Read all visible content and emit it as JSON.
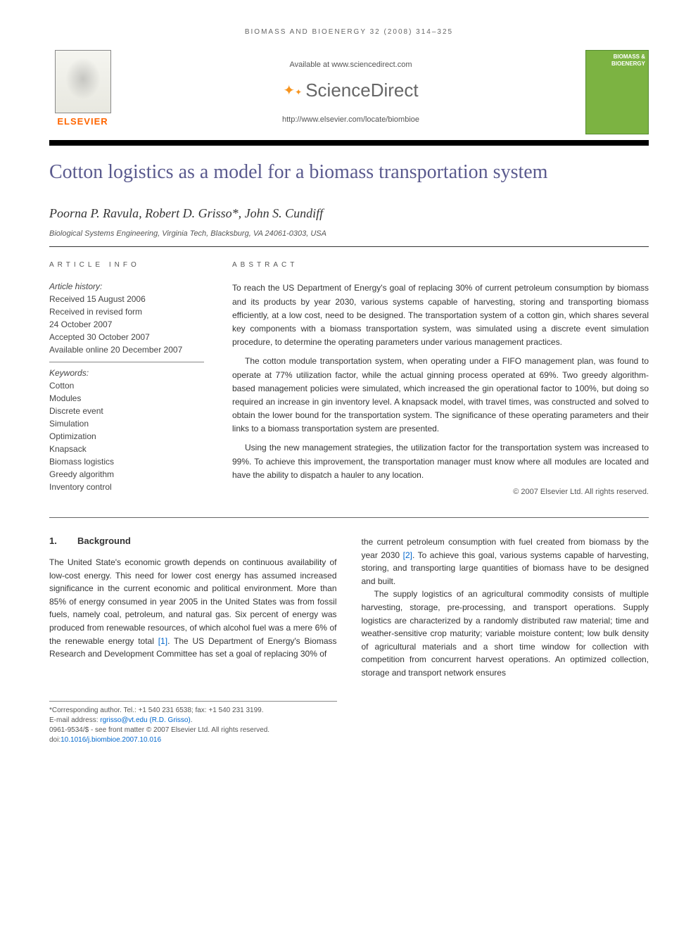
{
  "journal_header": "BIOMASS AND BIOENERGY 32 (2008) 314–325",
  "available_at": "Available at www.sciencedirect.com",
  "sciencedirect": "ScienceDirect",
  "journal_url": "http://www.elsevier.com/locate/biombioe",
  "elsevier_label": "ELSEVIER",
  "thumb_line1": "BIOMASS &",
  "thumb_line2": "BIOENERGY",
  "title": "Cotton logistics as a model for a biomass transportation system",
  "authors": "Poorna P. Ravula, Robert D. Grisso*, John S. Cundiff",
  "affiliation": "Biological Systems Engineering, Virginia Tech, Blacksburg, VA 24061-0303, USA",
  "article_info_label": "ARTICLE INFO",
  "abstract_label": "ABSTRACT",
  "history_label": "Article history:",
  "history": [
    "Received 15 August 2006",
    "Received in revised form",
    "24 October 2007",
    "Accepted 30 October 2007",
    "Available online 20 December 2007"
  ],
  "keywords_label": "Keywords:",
  "keywords": [
    "Cotton",
    "Modules",
    "Discrete event",
    "Simulation",
    "Optimization",
    "Knapsack",
    "Biomass logistics",
    "Greedy algorithm",
    "Inventory control"
  ],
  "abstract": {
    "p1": "To reach the US Department of Energy's goal of replacing 30% of current petroleum consumption by biomass and its products by year 2030, various systems capable of harvesting, storing and transporting biomass efficiently, at a low cost, need to be designed. The transportation system of a cotton gin, which shares several key components with a biomass transportation system, was simulated using a discrete event simulation procedure, to determine the operating parameters under various management practices.",
    "p2": "The cotton module transportation system, when operating under a FIFO management plan, was found to operate at 77% utilization factor, while the actual ginning process operated at 69%. Two greedy algorithm-based management policies were simulated, which increased the gin operational factor to 100%, but doing so required an increase in gin inventory level. A knapsack model, with travel times, was constructed and solved to obtain the lower bound for the transportation system. The significance of these operating parameters and their links to a biomass transportation system are presented.",
    "p3": "Using the new management strategies, the utilization factor for the transportation system was increased to 99%. To achieve this improvement, the transportation manager must know where all modules are located and have the ability to dispatch a hauler to any location."
  },
  "copyright": "© 2007 Elsevier Ltd. All rights reserved.",
  "section1": {
    "num": "1.",
    "title": "Background"
  },
  "body": {
    "col1_p1a": "The United State's economic growth depends on continuous availability of low-cost energy. This need for lower cost energy has assumed increased significance in the current economic and political environment. More than 85% of energy consumed in year 2005 in the United States was from fossil fuels, namely coal, petroleum, and natural gas. Six percent of energy was produced from renewable resources, of which alcohol fuel was a mere 6% of the renewable energy total ",
    "ref1": "[1]",
    "col1_p1b": ". The US Department of Energy's Biomass Research and Development Committee has set a goal of replacing 30% of",
    "col2_p1a": "the current petroleum consumption with fuel created from biomass by the year 2030 ",
    "ref2": "[2]",
    "col2_p1b": ". To achieve this goal, various systems capable of harvesting, storing, and transporting large quantities of biomass have to be designed and built.",
    "col2_p2": "The supply logistics of an agricultural commodity consists of multiple harvesting, storage, pre-processing, and transport operations. Supply logistics are characterized by a randomly distributed raw material; time and weather-sensitive crop maturity; variable moisture content; low bulk density of agricultural materials and a short time window for collection with competition from concurrent harvest operations. An optimized collection, storage and transport network ensures"
  },
  "footnotes": {
    "corr": "*Corresponding author. Tel.: +1 540 231 6538; fax: +1 540 231 3199.",
    "email_label": "E-mail address: ",
    "email": "rgrisso@vt.edu (R.D. Grisso)",
    "email_suffix": ".",
    "front_matter": "0961-9534/$ - see front matter © 2007 Elsevier Ltd. All rights reserved.",
    "doi_label": "doi:",
    "doi": "10.1016/j.biombioe.2007.10.016"
  },
  "colors": {
    "title_color": "#5a5a8e",
    "link_color": "#0066cc",
    "elsevier_orange": "#ff6600",
    "sd_orange": "#f7941e",
    "journal_green": "#7cb342"
  }
}
